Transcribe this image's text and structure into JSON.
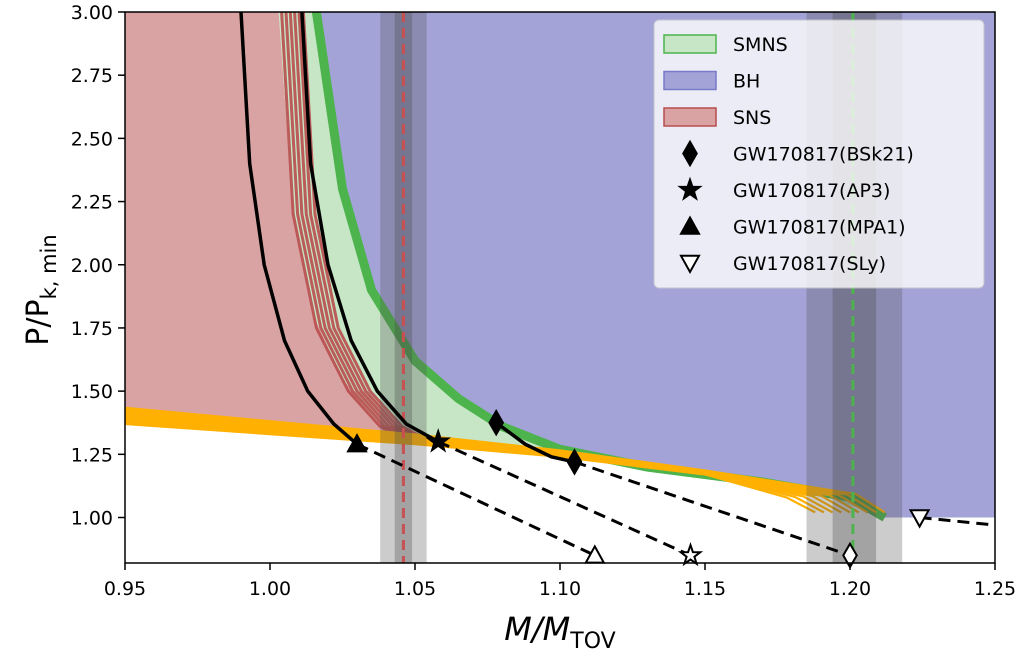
{
  "chart_data": {
    "type": "line",
    "xlabel": "M/M_TOV",
    "xlabel_main": "M/M",
    "xlabel_sub": "TOV",
    "ylabel": "P/P_k,min",
    "ylabel_main": "P/P",
    "ylabel_sub": "k, min",
    "xlim": [
      0.95,
      1.25
    ],
    "ylim": [
      0.82,
      3.0
    ],
    "xticks": [
      "0.95",
      "1.00",
      "1.05",
      "1.10",
      "1.15",
      "1.20",
      "1.25"
    ],
    "yticks": [
      "1.00",
      "1.25",
      "1.50",
      "1.75",
      "2.00",
      "2.25",
      "2.50",
      "2.75",
      "3.00"
    ],
    "colors": {
      "SMNS": "#c6e6c6",
      "BH": "#a3a3d8",
      "SNS": "#d9a3a3",
      "green": "#4db34d",
      "red": "#b84d4d",
      "orange": "#ffb000"
    },
    "regions": {
      "BH_boundary": [
        [
          1.016,
          3.0
        ],
        [
          1.025,
          2.3
        ],
        [
          1.035,
          1.9
        ],
        [
          1.05,
          1.62
        ],
        [
          1.065,
          1.47
        ],
        [
          1.08,
          1.36
        ],
        [
          1.1,
          1.27
        ],
        [
          1.13,
          1.2
        ],
        [
          1.17,
          1.14
        ],
        [
          1.2,
          1.08
        ],
        [
          1.212,
          1.0
        ],
        [
          1.25,
          1.0
        ]
      ],
      "SNS_boundary": [
        [
          1.003,
          3.0
        ],
        [
          1.008,
          2.2
        ],
        [
          1.015,
          1.8
        ],
        [
          1.025,
          1.55
        ],
        [
          1.035,
          1.4
        ],
        [
          1.047,
          1.3
        ]
      ],
      "orange_bottom": [
        [
          0.95,
          1.37
        ],
        [
          1.0,
          1.33
        ],
        [
          1.05,
          1.29
        ],
        [
          1.1,
          1.24
        ],
        [
          1.15,
          1.17
        ],
        [
          1.19,
          1.09
        ],
        [
          1.21,
          1.0
        ]
      ]
    },
    "series": [
      {
        "name": "MPA1",
        "points": [
          [
            0.99,
            3.0
          ],
          [
            0.993,
            2.4
          ],
          [
            0.998,
            2.0
          ],
          [
            1.005,
            1.7
          ],
          [
            1.013,
            1.5
          ],
          [
            1.022,
            1.37
          ],
          [
            1.03,
            1.29
          ]
        ]
      },
      {
        "name": "AP3",
        "points": [
          [
            1.011,
            3.0
          ],
          [
            1.014,
            2.4
          ],
          [
            1.02,
            2.0
          ],
          [
            1.028,
            1.7
          ],
          [
            1.037,
            1.5
          ],
          [
            1.047,
            1.37
          ],
          [
            1.058,
            1.3
          ]
        ]
      },
      {
        "name": "BSk21",
        "points": [
          [
            1.078,
            1.375
          ],
          [
            1.088,
            1.29
          ],
          [
            1.097,
            1.24
          ],
          [
            1.105,
            1.22
          ]
        ]
      }
    ],
    "dashed": [
      {
        "name": "MPA1",
        "points": [
          [
            1.03,
            1.29
          ],
          [
            1.112,
            0.85
          ]
        ]
      },
      {
        "name": "AP3",
        "points": [
          [
            1.058,
            1.3
          ],
          [
            1.145,
            0.85
          ]
        ]
      },
      {
        "name": "BSk21",
        "points": [
          [
            1.105,
            1.22
          ],
          [
            1.2,
            0.85
          ]
        ]
      },
      {
        "name": "SLy",
        "points": [
          [
            1.224,
            1.0
          ],
          [
            1.25,
            0.97
          ]
        ]
      }
    ],
    "markers": [
      {
        "shape": "diamond",
        "x": 1.078,
        "y": 1.375,
        "filled": true
      },
      {
        "shape": "diamond",
        "x": 1.105,
        "y": 1.22,
        "filled": true
      },
      {
        "shape": "star",
        "x": 1.058,
        "y": 1.3,
        "filled": true
      },
      {
        "shape": "triangle",
        "x": 1.03,
        "y": 1.29,
        "filled": true
      },
      {
        "shape": "triangle",
        "x": 1.112,
        "y": 0.85,
        "filled": false
      },
      {
        "shape": "star",
        "x": 1.145,
        "y": 0.85,
        "filled": false
      },
      {
        "shape": "diamond",
        "x": 1.2,
        "y": 0.85,
        "filled": false
      },
      {
        "shape": "tri-down",
        "x": 1.224,
        "y": 1.0,
        "filled": false
      }
    ],
    "vbands": [
      {
        "center": 1.046,
        "inner": [
          1.043,
          1.049
        ],
        "outer": [
          1.038,
          1.054
        ],
        "line": "#c85050"
      },
      {
        "center": 1.201,
        "inner": [
          1.194,
          1.209
        ],
        "outer": [
          1.185,
          1.218
        ],
        "line": "#4db34d"
      }
    ],
    "legend": {
      "placement": "top-right",
      "entries": [
        "SMNS",
        "BH",
        "SNS",
        "GW170817(BSk21)",
        "GW170817(AP3)",
        "GW170817(MPA1)",
        "GW170817(SLy)"
      ]
    }
  }
}
